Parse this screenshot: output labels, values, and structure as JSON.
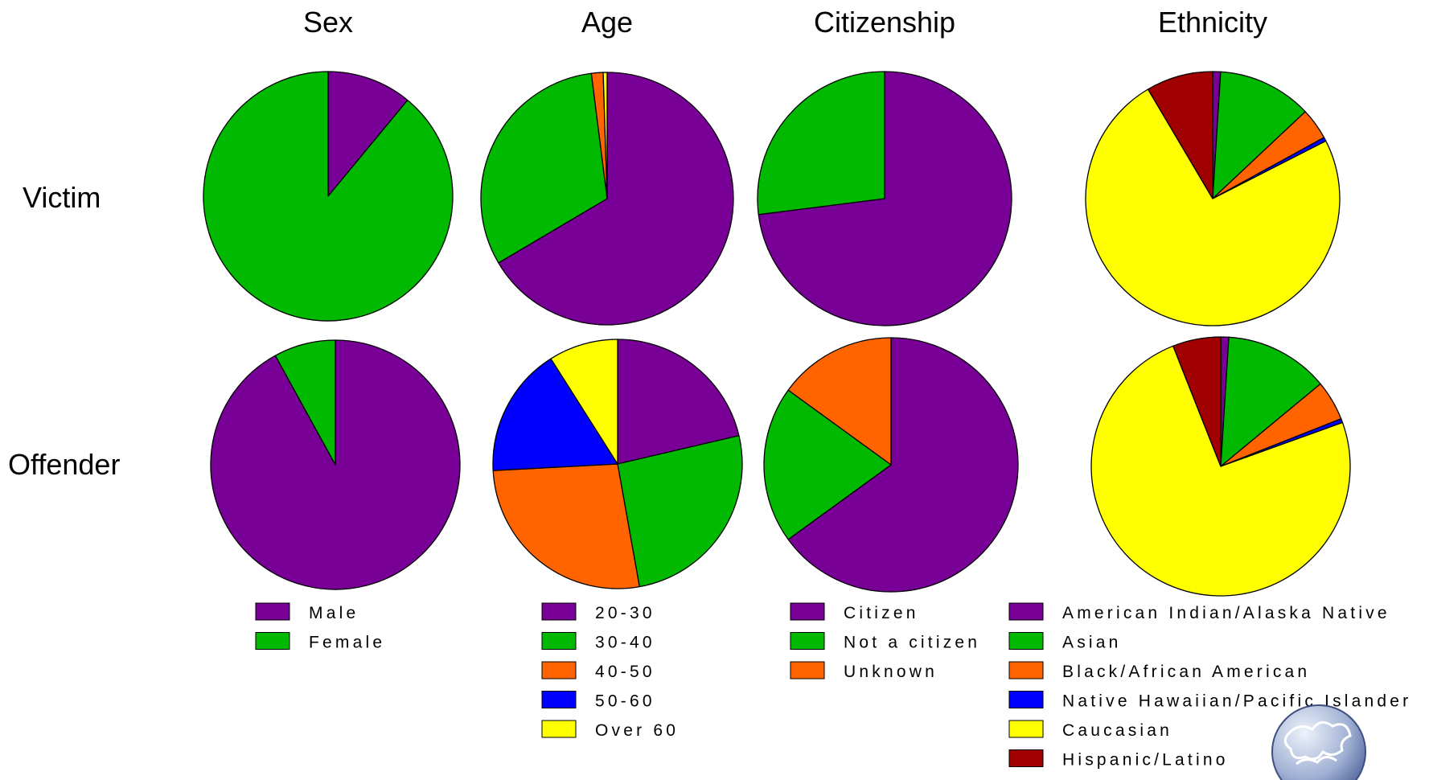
{
  "chart_data": {
    "type": "pie",
    "column_titles": [
      "Sex",
      "Age",
      "Citizenship",
      "Ethnicity"
    ],
    "row_labels": [
      "Victim",
      "Offender"
    ],
    "colors": {
      "purple": "#780096",
      "green": "#00B900",
      "orange": "#FF6400",
      "blue": "#0000FF",
      "yellow": "#FFFF00",
      "darkred": "#A00000"
    },
    "groups": [
      {
        "title": "Sex",
        "legend": [
          {
            "label": "Male",
            "color": "#780096"
          },
          {
            "label": "Female",
            "color": "#00B900"
          }
        ],
        "pies": [
          {
            "row": "Victim",
            "values": [
              11,
              89
            ]
          },
          {
            "row": "Offender",
            "values": [
              92,
              8
            ]
          }
        ]
      },
      {
        "title": "Age",
        "legend": [
          {
            "label": "20-30",
            "color": "#780096"
          },
          {
            "label": "30-40",
            "color": "#00B900"
          },
          {
            "label": "40-50",
            "color": "#FF6400"
          },
          {
            "label": "50-60",
            "color": "#0000FF"
          },
          {
            "label": "Over 60",
            "color": "#FFFF00"
          }
        ],
        "pies": [
          {
            "row": "Victim",
            "values": [
              66.5,
              31.5,
              1.5,
              0,
              0.5
            ]
          },
          {
            "row": "Offender",
            "values": [
              19,
              23,
              24,
              15,
              8
            ]
          }
        ]
      },
      {
        "title": "Citizenship",
        "legend": [
          {
            "label": "Citizen",
            "color": "#780096"
          },
          {
            "label": "Not a citizen",
            "color": "#00B900"
          },
          {
            "label": "Unknown",
            "color": "#FF6400"
          }
        ],
        "pies": [
          {
            "row": "Victim",
            "values": [
              73,
              27,
              0
            ]
          },
          {
            "row": "Offender",
            "values": [
              65,
              20,
              15
            ]
          }
        ]
      },
      {
        "title": "Ethnicity",
        "legend": [
          {
            "label": "American Indian/Alaska Native",
            "color": "#780096"
          },
          {
            "label": "Asian",
            "color": "#00B900"
          },
          {
            "label": "Black/African American",
            "color": "#FF6400"
          },
          {
            "label": "Native Hawaiian/Pacific Islander",
            "color": "#0000FF"
          },
          {
            "label": "Caucasian",
            "color": "#FFFF00"
          },
          {
            "label": "Hispanic/Latino",
            "color": "#A00000"
          }
        ],
        "pies": [
          {
            "row": "Victim",
            "values": [
              1,
              12,
              4,
              0.5,
              74,
              8.5
            ]
          },
          {
            "row": "Offender",
            "values": [
              1,
              13,
              5,
              0.5,
              74.5,
              6
            ]
          }
        ]
      }
    ],
    "logo": {
      "icon": "puzzle-globe-icon"
    }
  }
}
